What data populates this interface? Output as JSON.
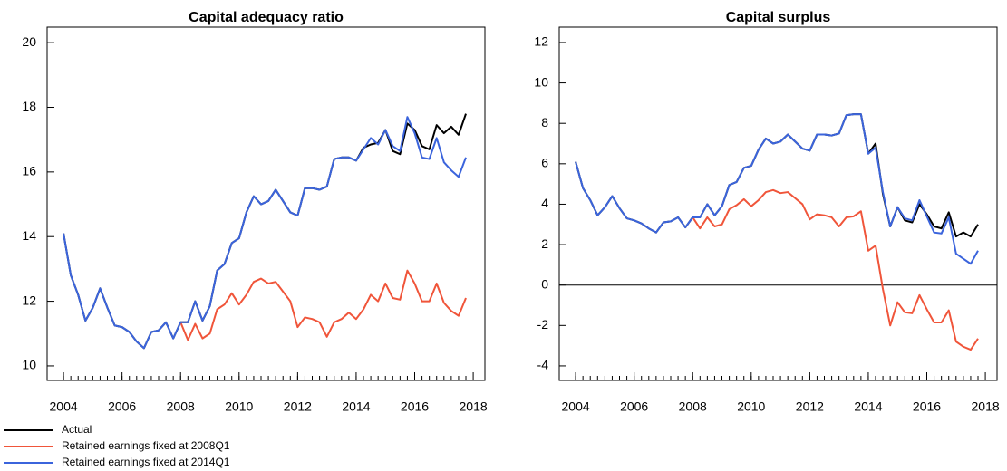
{
  "chart_data": [
    {
      "type": "line",
      "title": "Capital adequacy ratio",
      "x": [
        2004,
        2004.25,
        2004.5,
        2004.75,
        2005,
        2005.25,
        2005.5,
        2005.75,
        2006,
        2006.25,
        2006.5,
        2006.75,
        2007,
        2007.25,
        2007.5,
        2007.75,
        2008,
        2008.25,
        2008.5,
        2008.75,
        2009,
        2009.25,
        2009.5,
        2009.75,
        2010,
        2010.25,
        2010.5,
        2010.75,
        2011,
        2011.25,
        2011.5,
        2011.75,
        2012,
        2012.25,
        2012.5,
        2012.75,
        2013,
        2013.25,
        2013.5,
        2013.75,
        2014,
        2014.25,
        2014.5,
        2014.75,
        2015,
        2015.25,
        2015.5,
        2015.75,
        2016,
        2016.25,
        2016.5,
        2016.75,
        2017,
        2017.25,
        2017.5,
        2017.75
      ],
      "series": [
        {
          "name": "Actual",
          "color": "#000000",
          "values": [
            14.1,
            12.8,
            12.2,
            11.4,
            11.8,
            12.4,
            11.8,
            11.25,
            11.2,
            11.05,
            10.75,
            10.55,
            11.05,
            11.1,
            11.35,
            10.85,
            11.35,
            11.35,
            12.0,
            11.4,
            11.85,
            12.95,
            13.15,
            13.8,
            13.95,
            14.75,
            15.25,
            15.0,
            15.1,
            15.45,
            15.1,
            14.75,
            14.65,
            15.5,
            15.5,
            15.45,
            15.55,
            16.4,
            16.45,
            16.45,
            16.35,
            16.75,
            16.85,
            16.9,
            17.3,
            16.65,
            16.55,
            17.5,
            17.3,
            16.8,
            16.7,
            17.45,
            17.2,
            17.4,
            17.15,
            17.8
          ]
        },
        {
          "name": "Retained earnings fixed at 2008Q1",
          "color": "#f0553a",
          "values": [
            null,
            null,
            null,
            null,
            null,
            null,
            null,
            null,
            null,
            null,
            null,
            null,
            null,
            null,
            null,
            null,
            11.35,
            10.8,
            11.3,
            10.85,
            11.0,
            11.75,
            11.9,
            12.25,
            11.9,
            12.2,
            12.6,
            12.7,
            12.55,
            12.6,
            12.3,
            12.0,
            11.2,
            11.5,
            11.45,
            11.35,
            10.9,
            11.35,
            11.45,
            11.65,
            11.45,
            11.75,
            12.2,
            12.0,
            12.55,
            12.1,
            12.05,
            12.95,
            12.55,
            12.0,
            12.0,
            12.55,
            11.95,
            11.7,
            11.55,
            12.1
          ]
        },
        {
          "name": "Retained earnings fixed at 2014Q1",
          "color": "#3b64dc",
          "values": [
            14.1,
            12.8,
            12.2,
            11.4,
            11.8,
            12.4,
            11.8,
            11.25,
            11.2,
            11.05,
            10.75,
            10.55,
            11.05,
            11.1,
            11.35,
            10.85,
            11.35,
            11.35,
            12.0,
            11.4,
            11.85,
            12.95,
            13.15,
            13.8,
            13.95,
            14.75,
            15.25,
            15.0,
            15.1,
            15.45,
            15.1,
            14.75,
            14.65,
            15.5,
            15.5,
            15.45,
            15.55,
            16.4,
            16.45,
            16.45,
            16.35,
            16.7,
            17.05,
            16.85,
            17.3,
            16.8,
            16.65,
            17.7,
            17.2,
            16.45,
            16.4,
            17.05,
            16.3,
            16.05,
            15.85,
            16.45
          ]
        }
      ],
      "xlim": [
        2003.44,
        2018.4
      ],
      "xticks": [
        2004,
        2006,
        2008,
        2010,
        2012,
        2014,
        2016,
        2018
      ],
      "ylim": [
        9.55,
        20.48
      ],
      "yticks": [
        10,
        12,
        14,
        16,
        18,
        20
      ]
    },
    {
      "type": "line",
      "title": "Capital surplus",
      "x": [
        2004,
        2004.25,
        2004.5,
        2004.75,
        2005,
        2005.25,
        2005.5,
        2005.75,
        2006,
        2006.25,
        2006.5,
        2006.75,
        2007,
        2007.25,
        2007.5,
        2007.75,
        2008,
        2008.25,
        2008.5,
        2008.75,
        2009,
        2009.25,
        2009.5,
        2009.75,
        2010,
        2010.25,
        2010.5,
        2010.75,
        2011,
        2011.25,
        2011.5,
        2011.75,
        2012,
        2012.25,
        2012.5,
        2012.75,
        2013,
        2013.25,
        2013.5,
        2013.75,
        2014,
        2014.25,
        2014.5,
        2014.75,
        2015,
        2015.25,
        2015.5,
        2015.75,
        2016,
        2016.25,
        2016.5,
        2016.75,
        2017,
        2017.25,
        2017.5,
        2017.75
      ],
      "series": [
        {
          "color": "#000000",
          "values": [
            6.1,
            4.8,
            4.2,
            3.45,
            3.85,
            4.4,
            3.8,
            3.3,
            3.2,
            3.05,
            2.8,
            2.6,
            3.1,
            3.15,
            3.35,
            2.85,
            3.35,
            3.35,
            4.0,
            3.45,
            3.9,
            4.95,
            5.1,
            5.8,
            5.9,
            6.7,
            7.25,
            7.0,
            7.1,
            7.45,
            7.1,
            6.75,
            6.65,
            7.45,
            7.45,
            7.4,
            7.5,
            8.4,
            8.45,
            8.45,
            6.5,
            7.0,
            4.5,
            2.9,
            3.85,
            3.2,
            3.1,
            4.0,
            3.5,
            2.9,
            2.8,
            3.6,
            2.4,
            2.6,
            2.4,
            3.0
          ]
        },
        {
          "color": "#f0553a",
          "values": [
            null,
            null,
            null,
            null,
            null,
            null,
            null,
            null,
            null,
            null,
            null,
            null,
            null,
            null,
            null,
            null,
            3.35,
            2.8,
            3.35,
            2.9,
            3.0,
            3.75,
            3.95,
            4.25,
            3.9,
            4.2,
            4.6,
            4.7,
            4.55,
            4.6,
            4.3,
            4.0,
            3.25,
            3.5,
            3.45,
            3.35,
            2.9,
            3.35,
            3.4,
            3.65,
            1.7,
            1.95,
            -0.2,
            -2.0,
            -0.85,
            -1.35,
            -1.4,
            -0.5,
            -1.2,
            -1.85,
            -1.85,
            -1.25,
            -2.8,
            -3.05,
            -3.2,
            -2.65
          ]
        },
        {
          "color": "#3b64dc",
          "values": [
            6.1,
            4.8,
            4.2,
            3.45,
            3.85,
            4.4,
            3.8,
            3.3,
            3.2,
            3.05,
            2.8,
            2.6,
            3.1,
            3.15,
            3.35,
            2.85,
            3.35,
            3.35,
            4.0,
            3.45,
            3.9,
            4.95,
            5.1,
            5.8,
            5.9,
            6.7,
            7.25,
            7.0,
            7.1,
            7.45,
            7.1,
            6.75,
            6.65,
            7.45,
            7.45,
            7.4,
            7.5,
            8.4,
            8.45,
            8.45,
            6.5,
            6.8,
            4.6,
            2.9,
            3.85,
            3.3,
            3.2,
            4.2,
            3.4,
            2.6,
            2.55,
            3.35,
            1.55,
            1.3,
            1.05,
            1.7
          ]
        }
      ],
      "xlim": [
        2003.44,
        2018.4
      ],
      "xticks": [
        2004,
        2006,
        2008,
        2010,
        2012,
        2014,
        2016,
        2018
      ],
      "ylim": [
        -4.72,
        12.76
      ],
      "yticks": [
        -4,
        -2,
        0,
        2,
        4,
        6,
        8,
        10,
        12
      ],
      "hline": 0
    }
  ]
}
